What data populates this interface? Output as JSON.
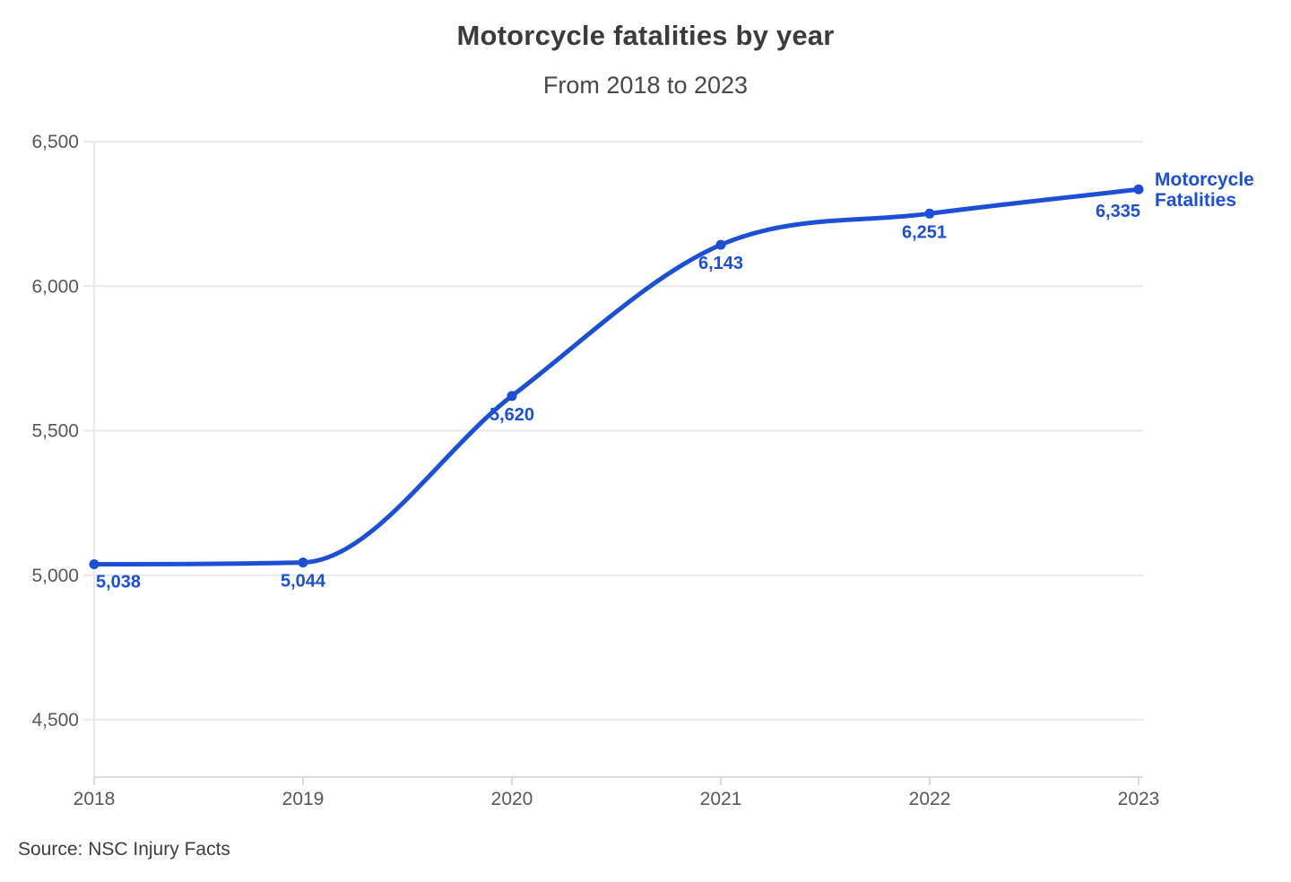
{
  "header": {
    "title": "Motorcycle fatalities by year",
    "subtitle": "From 2018 to 2023"
  },
  "footer": {
    "source": "Source: NSC Injury Facts"
  },
  "series_label": {
    "line1": "Motorcycle",
    "line2": "Fatalities"
  },
  "colors": {
    "accent": "#1c4fd6",
    "grid": "#e9e9e9",
    "axis": "#dcdcdc",
    "tick_text": "#575757",
    "title_text": "#3b3b3b",
    "background": "#ffffff"
  },
  "chart_data": {
    "type": "line",
    "title": "Motorcycle fatalities by year",
    "subtitle": "From 2018 to 2023",
    "categories": [
      "2018",
      "2019",
      "2020",
      "2021",
      "2022",
      "2023"
    ],
    "series": [
      {
        "name": "Motorcycle Fatalities",
        "values": [
          5038,
          5044,
          5620,
          6143,
          6251,
          6335
        ]
      }
    ],
    "point_labels": [
      "5,038",
      "5,044",
      "5,620",
      "6,143",
      "6,251",
      "6,335"
    ],
    "xlabel": "",
    "ylabel": "",
    "ylim": [
      4500,
      6500
    ],
    "y_ticks": [
      {
        "value": 6500,
        "label": "6,500"
      },
      {
        "value": 6000,
        "label": "6,000"
      },
      {
        "value": 5500,
        "label": "5,500"
      },
      {
        "value": 5000,
        "label": "5,000"
      },
      {
        "value": 4500,
        "label": "4,500"
      }
    ],
    "grid": "horizontal",
    "legend_position": "end-of-line",
    "line_color": "#1c4fd6",
    "smooth": true,
    "annotation": "Source: NSC Injury Facts"
  }
}
